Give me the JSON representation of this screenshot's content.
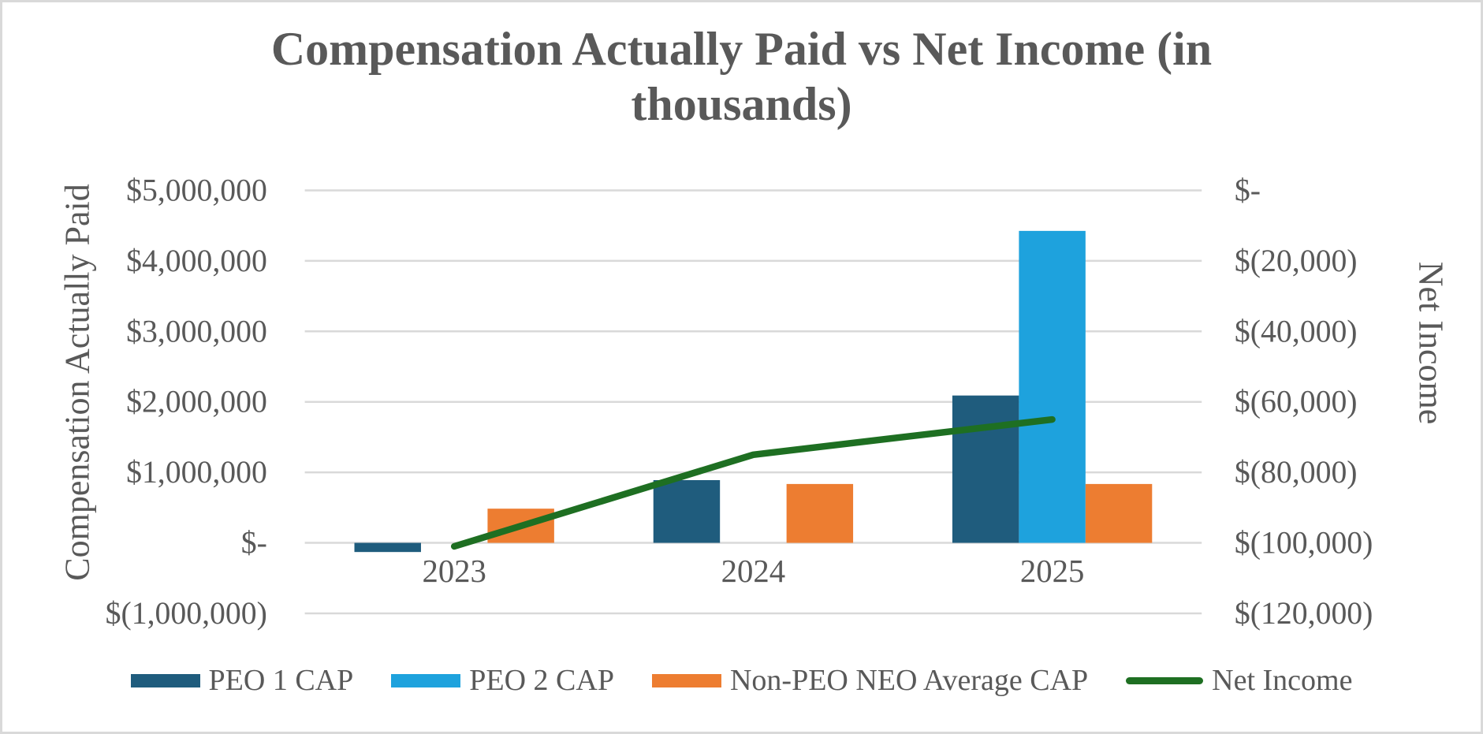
{
  "title": "Compensation Actually Paid vs Net Income (in thousands)",
  "colors": {
    "text": "#595959",
    "gridline": "#D9D9D9",
    "canvas_border": "#D9D9D9",
    "background": "#FFFFFF",
    "peo1_bar": "#1F5C7D",
    "peo2_bar": "#1EA2DD",
    "non_peo_bar": "#ED7D31",
    "net_income_line": "#1E6F22"
  },
  "chart_data": {
    "type": "bar",
    "subtype": "clustered-bar-with-line-combo",
    "title": "Compensation Actually Paid vs Net Income (in thousands)",
    "categories": [
      "2023",
      "2024",
      "2025"
    ],
    "series": [
      {
        "name": "PEO 1 CAP",
        "type": "bar",
        "axis": "left",
        "color": "#1F5C7D",
        "values": [
          -130000,
          890000,
          2090000
        ]
      },
      {
        "name": "PEO 2 CAP",
        "type": "bar",
        "axis": "left",
        "color": "#1EA2DD",
        "values": [
          0,
          0,
          4425000
        ]
      },
      {
        "name": "Non-PEO NEO Average CAP",
        "type": "bar",
        "axis": "left",
        "color": "#ED7D31",
        "values": [
          485000,
          835000,
          835000
        ]
      },
      {
        "name": "Net Income",
        "type": "line",
        "axis": "right",
        "color": "#1E6F22",
        "values": [
          -101000,
          -75000,
          -65000
        ]
      }
    ],
    "left_axis": {
      "title": "Compensation Actually Paid",
      "min": -1000000,
      "max": 5000000,
      "step": 1000000,
      "tick_labels": [
        "$5,000,000",
        "$4,000,000",
        "$3,000,000",
        "$2,000,000",
        "$1,000,000",
        "$-",
        "$(1,000,000)"
      ]
    },
    "right_axis": {
      "title": "Net Income",
      "min": -120000,
      "max": 0,
      "step": 20000,
      "tick_labels": [
        "$-",
        "$(20,000)",
        "$(40,000)",
        "$(60,000)",
        "$(80,000)",
        "$(100,000)",
        "$(120,000)"
      ]
    },
    "grid": true,
    "legend_position": "bottom"
  },
  "legend": {
    "items": [
      {
        "label": "PEO 1 CAP",
        "marker": "rect"
      },
      {
        "label": "PEO 2 CAP",
        "marker": "rect"
      },
      {
        "label": "Non-PEO NEO Average CAP",
        "marker": "rect"
      },
      {
        "label": "Net Income",
        "marker": "line"
      }
    ]
  }
}
